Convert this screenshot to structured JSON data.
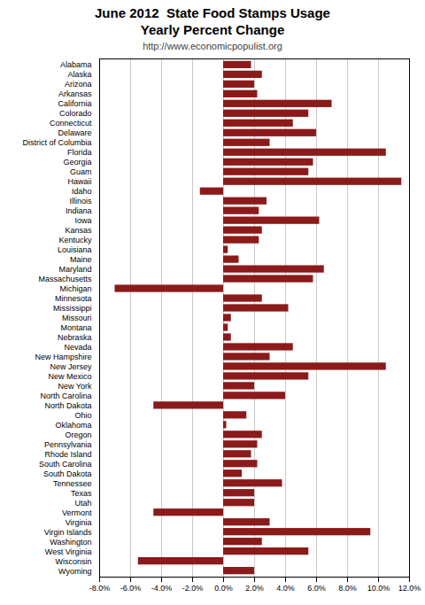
{
  "chart_data": {
    "type": "bar",
    "orientation": "horizontal",
    "title": "June 2012  State Food Stamps Usage\nYearly Percent Change",
    "subtitle": "http://www.economicpopulist.org",
    "categories": [
      "Alabama",
      "Alaska",
      "Arizona",
      "Arkansas",
      "California",
      "Colorado",
      "Connecticut",
      "Delaware",
      "District of Columbia",
      "Florida",
      "Georgia",
      "Guam",
      "Hawaii",
      "Idaho",
      "Illinois",
      "Indiana",
      "Iowa",
      "Kansas",
      "Kentucky",
      "Louisiana",
      "Maine",
      "Maryland",
      "Massachusetts",
      "Michigan",
      "Minnesota",
      "Mississippi",
      "Missouri",
      "Montana",
      "Nebraska",
      "Nevada",
      "New Hampshire",
      "New Jersey",
      "New Mexico",
      "New York",
      "North Carolina",
      "North Dakota",
      "Ohio",
      "Oklahoma",
      "Oregon",
      "Pennsylvania",
      "Rhode Island",
      "South Carolina",
      "South Dakota",
      "Tennessee",
      "Texas",
      "Utah",
      "Vermont",
      "Virginia",
      "Virgin Islands",
      "Washington",
      "West Virginia",
      "Wisconsin",
      "Wyoming"
    ],
    "values": [
      1.8,
      2.5,
      2.0,
      2.2,
      7.0,
      5.5,
      4.5,
      6.0,
      3.0,
      10.5,
      5.8,
      5.5,
      11.5,
      -1.5,
      2.8,
      2.3,
      6.2,
      2.5,
      2.3,
      0.3,
      1.0,
      6.5,
      5.8,
      -7.0,
      2.5,
      4.2,
      0.5,
      0.3,
      0.5,
      4.5,
      3.0,
      10.5,
      5.5,
      2.0,
      4.0,
      -4.5,
      1.5,
      0.2,
      2.5,
      2.2,
      1.8,
      2.2,
      1.2,
      3.8,
      2.0,
      2.0,
      -4.5,
      3.0,
      9.5,
      2.5,
      5.5,
      -5.5,
      2.0
    ],
    "color": "#8B1A1A",
    "xlim": [
      -8.0,
      12.0
    ],
    "xticks": [
      {
        "value": -8.0,
        "label": "-8.0%"
      },
      {
        "value": -6.0,
        "label": "-6.0%"
      },
      {
        "value": -4.0,
        "label": "-4.0%"
      },
      {
        "value": -2.0,
        "label": "-2.0%"
      },
      {
        "value": 0.0,
        "label": "0.0%"
      },
      {
        "value": 2.0,
        "label": "2.0%"
      },
      {
        "value": 4.0,
        "label": "4.0%"
      },
      {
        "value": 6.0,
        "label": "6.0%"
      },
      {
        "value": 8.0,
        "label": "8.0%"
      },
      {
        "value": 10.0,
        "label": "10.0%"
      },
      {
        "value": 12.0,
        "label": "12.0%"
      }
    ],
    "grid": true
  }
}
